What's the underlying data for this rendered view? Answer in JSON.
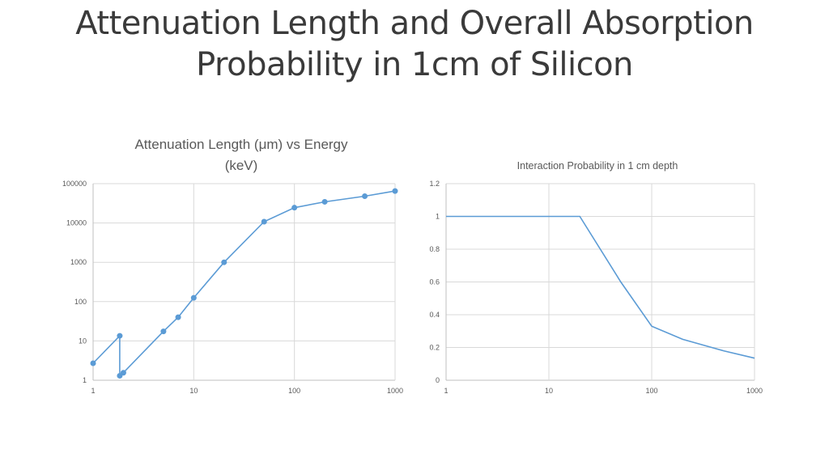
{
  "slide": {
    "title_line1": "Attenuation Length and Overall Absorption",
    "title_line2": "Probability in 1cm of Silicon"
  },
  "chart_data": [
    {
      "type": "scatter",
      "title_line1": "Attenuation Length (μm) vs Energy",
      "title_line2": "(keV)",
      "xscale": "log",
      "yscale": "log",
      "xlim": [
        1,
        1000
      ],
      "ylim": [
        1,
        100000
      ],
      "xticks": [
        "1",
        "10",
        "100",
        "1000"
      ],
      "yticks": [
        "1",
        "10",
        "100",
        "1000",
        "10000",
        "100000"
      ],
      "grid": true,
      "series": [
        {
          "color": "#5b9bd5",
          "markers": true,
          "x": [
            1,
            1.84,
            1.84,
            2,
            5,
            7,
            10,
            20,
            50,
            100,
            200,
            500,
            1000
          ],
          "y": [
            2.7,
            13.5,
            1.3,
            1.55,
            17.5,
            40,
            125,
            1000,
            10800,
            24500,
            34500,
            48000,
            65000
          ]
        }
      ]
    },
    {
      "type": "line",
      "title": "Interaction Probability in 1 cm depth",
      "xscale": "log",
      "yscale": "linear",
      "xlim": [
        1,
        1000
      ],
      "ylim": [
        0,
        1.2
      ],
      "xticks": [
        "1",
        "10",
        "100",
        "1000"
      ],
      "yticks": [
        "0",
        "0.2",
        "0.4",
        "0.6",
        "0.8",
        "1",
        "1.2"
      ],
      "grid": true,
      "series": [
        {
          "color": "#5b9bd5",
          "markers": false,
          "x": [
            1,
            10,
            20,
            50,
            100,
            200,
            500,
            1000
          ],
          "y": [
            1,
            1,
            1,
            0.6,
            0.33,
            0.25,
            0.18,
            0.135
          ]
        }
      ]
    }
  ]
}
